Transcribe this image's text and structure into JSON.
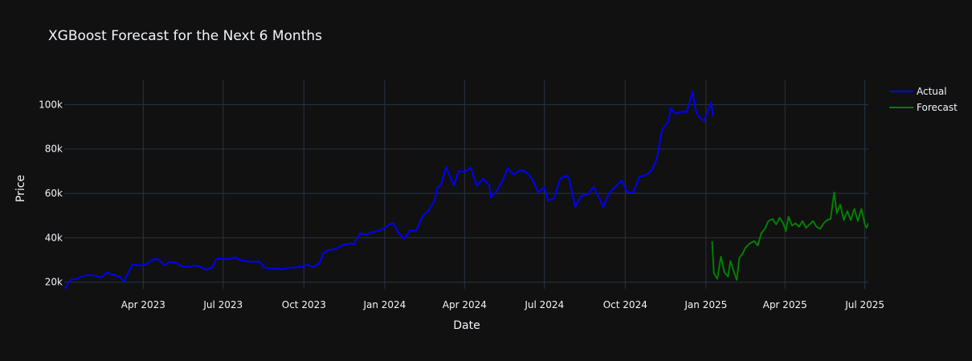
{
  "colors": {
    "background": "#111111",
    "grid": "#283442",
    "text": "#f2f5fa",
    "actual": "#0000ff",
    "forecast": "#008000"
  },
  "chart_data": {
    "type": "line",
    "title": "XGBoost Forecast for the Next 6 Months",
    "xlabel": "Date",
    "ylabel": "Price",
    "xlim": [
      "2023-01-01",
      "2025-07-05"
    ],
    "ylim": [
      17000,
      111000
    ],
    "grid": true,
    "legend_position": "top-right",
    "x_ticks": [
      {
        "date": "2023-04-01",
        "label": "Apr 2023"
      },
      {
        "date": "2023-07-01",
        "label": "Jul 2023"
      },
      {
        "date": "2023-10-01",
        "label": "Oct 2023"
      },
      {
        "date": "2024-01-01",
        "label": "Jan 2024"
      },
      {
        "date": "2024-04-01",
        "label": "Apr 2024"
      },
      {
        "date": "2024-07-01",
        "label": "Jul 2024"
      },
      {
        "date": "2024-10-01",
        "label": "Oct 2024"
      },
      {
        "date": "2025-01-01",
        "label": "Jan 2025"
      },
      {
        "date": "2025-04-01",
        "label": "Apr 2025"
      },
      {
        "date": "2025-07-01",
        "label": "Jul 2025"
      }
    ],
    "y_ticks": [
      {
        "value": 20000,
        "label": "20k"
      },
      {
        "value": 40000,
        "label": "40k"
      },
      {
        "value": 60000,
        "label": "60k"
      },
      {
        "value": 80000,
        "label": "80k"
      },
      {
        "value": 100000,
        "label": "100k"
      }
    ],
    "series": [
      {
        "name": "Actual",
        "color": "#0000ff",
        "points": [
          [
            "2023-01-01",
            16600
          ],
          [
            "2023-01-08",
            21000
          ],
          [
            "2023-01-15",
            21500
          ],
          [
            "2023-01-22",
            22800
          ],
          [
            "2023-01-29",
            23200
          ],
          [
            "2023-02-05",
            22900
          ],
          [
            "2023-02-12",
            22100
          ],
          [
            "2023-02-19",
            24300
          ],
          [
            "2023-02-26",
            23300
          ],
          [
            "2023-03-05",
            22400
          ],
          [
            "2023-03-10",
            20200
          ],
          [
            "2023-03-15",
            24500
          ],
          [
            "2023-03-20",
            28000
          ],
          [
            "2023-03-28",
            27500
          ],
          [
            "2023-04-05",
            28200
          ],
          [
            "2023-04-12",
            30200
          ],
          [
            "2023-04-18",
            30300
          ],
          [
            "2023-04-25",
            27600
          ],
          [
            "2023-05-01",
            29100
          ],
          [
            "2023-05-08",
            28800
          ],
          [
            "2023-05-15",
            27100
          ],
          [
            "2023-05-22",
            26800
          ],
          [
            "2023-05-29",
            27600
          ],
          [
            "2023-06-05",
            26900
          ],
          [
            "2023-06-12",
            25600
          ],
          [
            "2023-06-19",
            26800
          ],
          [
            "2023-06-23",
            30400
          ],
          [
            "2023-06-30",
            30500
          ],
          [
            "2023-07-07",
            30300
          ],
          [
            "2023-07-14",
            31200
          ],
          [
            "2023-07-21",
            29900
          ],
          [
            "2023-07-28",
            29300
          ],
          [
            "2023-08-04",
            29100
          ],
          [
            "2023-08-11",
            29400
          ],
          [
            "2023-08-17",
            26600
          ],
          [
            "2023-08-24",
            26200
          ],
          [
            "2023-08-31",
            26000
          ],
          [
            "2023-09-07",
            25800
          ],
          [
            "2023-09-14",
            26500
          ],
          [
            "2023-09-21",
            26600
          ],
          [
            "2023-09-28",
            27000
          ],
          [
            "2023-10-05",
            27800
          ],
          [
            "2023-10-12",
            26800
          ],
          [
            "2023-10-19",
            28700
          ],
          [
            "2023-10-23",
            33100
          ],
          [
            "2023-10-30",
            34500
          ],
          [
            "2023-11-06",
            35000
          ],
          [
            "2023-11-13",
            36500
          ],
          [
            "2023-11-20",
            37400
          ],
          [
            "2023-11-27",
            37200
          ],
          [
            "2023-12-04",
            42000
          ],
          [
            "2023-12-11",
            41400
          ],
          [
            "2023-12-18",
            42600
          ],
          [
            "2023-12-25",
            43000
          ],
          [
            "2024-01-01",
            44500
          ],
          [
            "2024-01-08",
            46300
          ],
          [
            "2024-01-11",
            46500
          ],
          [
            "2024-01-16",
            42600
          ],
          [
            "2024-01-23",
            39500
          ],
          [
            "2024-01-30",
            43300
          ],
          [
            "2024-02-06",
            43100
          ],
          [
            "2024-02-13",
            49700
          ],
          [
            "2024-02-20",
            52200
          ],
          [
            "2024-02-27",
            57000
          ],
          [
            "2024-03-01",
            62500
          ],
          [
            "2024-03-05",
            63700
          ],
          [
            "2024-03-11",
            72000
          ],
          [
            "2024-03-15",
            68000
          ],
          [
            "2024-03-20",
            63500
          ],
          [
            "2024-03-25",
            70000
          ],
          [
            "2024-04-01",
            69700
          ],
          [
            "2024-04-08",
            71600
          ],
          [
            "2024-04-15",
            63400
          ],
          [
            "2024-04-22",
            66600
          ],
          [
            "2024-04-29",
            63800
          ],
          [
            "2024-05-01",
            58300
          ],
          [
            "2024-05-08",
            61300
          ],
          [
            "2024-05-15",
            66300
          ],
          [
            "2024-05-20",
            71400
          ],
          [
            "2024-05-27",
            68500
          ],
          [
            "2024-06-03",
            70500
          ],
          [
            "2024-06-10",
            69600
          ],
          [
            "2024-06-17",
            66500
          ],
          [
            "2024-06-24",
            60300
          ],
          [
            "2024-07-01",
            62800
          ],
          [
            "2024-07-05",
            56700
          ],
          [
            "2024-07-12",
            57900
          ],
          [
            "2024-07-19",
            66700
          ],
          [
            "2024-07-26",
            67900
          ],
          [
            "2024-07-29",
            66800
          ],
          [
            "2024-08-05",
            54000
          ],
          [
            "2024-08-12",
            58900
          ],
          [
            "2024-08-19",
            59500
          ],
          [
            "2024-08-26",
            62900
          ],
          [
            "2024-09-02",
            57400
          ],
          [
            "2024-09-06",
            53900
          ],
          [
            "2024-09-13",
            60500
          ],
          [
            "2024-09-20",
            63000
          ],
          [
            "2024-09-27",
            65800
          ],
          [
            "2024-10-03",
            60600
          ],
          [
            "2024-10-10",
            60300
          ],
          [
            "2024-10-17",
            67400
          ],
          [
            "2024-10-24",
            68200
          ],
          [
            "2024-10-31",
            70200
          ],
          [
            "2024-11-06",
            75600
          ],
          [
            "2024-11-12",
            88700
          ],
          [
            "2024-11-19",
            92300
          ],
          [
            "2024-11-22",
            98400
          ],
          [
            "2024-11-27",
            95900
          ],
          [
            "2024-12-05",
            96900
          ],
          [
            "2024-12-10",
            96700
          ],
          [
            "2024-12-17",
            106100
          ],
          [
            "2024-12-20",
            97800
          ],
          [
            "2024-12-24",
            94300
          ],
          [
            "2024-12-30",
            92700
          ],
          [
            "2025-01-04",
            98000
          ],
          [
            "2025-01-07",
            101000
          ],
          [
            "2025-01-09",
            95000
          ]
        ]
      },
      {
        "name": "Forecast",
        "color": "#008000",
        "points": [
          [
            "2025-01-08",
            38500
          ],
          [
            "2025-01-10",
            24000
          ],
          [
            "2025-01-14",
            21500
          ],
          [
            "2025-01-18",
            31500
          ],
          [
            "2025-01-22",
            24500
          ],
          [
            "2025-01-26",
            22500
          ],
          [
            "2025-01-29",
            29500
          ],
          [
            "2025-02-01",
            25500
          ],
          [
            "2025-02-05",
            21000
          ],
          [
            "2025-02-08",
            31000
          ],
          [
            "2025-02-12",
            33000
          ],
          [
            "2025-02-15",
            35500
          ],
          [
            "2025-02-20",
            37500
          ],
          [
            "2025-02-25",
            38500
          ],
          [
            "2025-03-01",
            36500
          ],
          [
            "2025-03-05",
            42000
          ],
          [
            "2025-03-09",
            44000
          ],
          [
            "2025-03-13",
            47500
          ],
          [
            "2025-03-18",
            48500
          ],
          [
            "2025-03-22",
            46000
          ],
          [
            "2025-03-26",
            49000
          ],
          [
            "2025-03-30",
            46500
          ],
          [
            "2025-04-02",
            43000
          ],
          [
            "2025-04-05",
            49500
          ],
          [
            "2025-04-09",
            45500
          ],
          [
            "2025-04-13",
            46500
          ],
          [
            "2025-04-17",
            45000
          ],
          [
            "2025-04-21",
            47500
          ],
          [
            "2025-04-25",
            44500
          ],
          [
            "2025-04-29",
            46000
          ],
          [
            "2025-05-03",
            47500
          ],
          [
            "2025-05-07",
            45000
          ],
          [
            "2025-05-11",
            44000
          ],
          [
            "2025-05-15",
            46500
          ],
          [
            "2025-05-19",
            48000
          ],
          [
            "2025-05-23",
            48500
          ],
          [
            "2025-05-27",
            60500
          ],
          [
            "2025-05-30",
            51000
          ],
          [
            "2025-06-03",
            55000
          ],
          [
            "2025-06-07",
            48000
          ],
          [
            "2025-06-11",
            52000
          ],
          [
            "2025-06-15",
            48000
          ],
          [
            "2025-06-19",
            53000
          ],
          [
            "2025-06-23",
            47500
          ],
          [
            "2025-06-27",
            53000
          ],
          [
            "2025-07-01",
            46000
          ],
          [
            "2025-07-03",
            44500
          ],
          [
            "2025-07-05",
            46500
          ]
        ]
      }
    ]
  }
}
